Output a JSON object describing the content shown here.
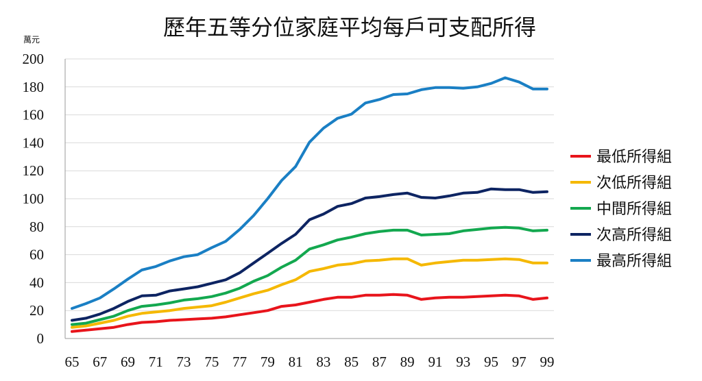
{
  "chart_data": {
    "type": "line",
    "title": "歷年五等分位家庭平均每戶可支配所得",
    "unit_label": "萬元",
    "xlabel": "",
    "ylabel": "",
    "ylim": [
      0,
      200
    ],
    "yticks": [
      0,
      20,
      40,
      60,
      80,
      100,
      120,
      140,
      160,
      180,
      200
    ],
    "grid": true,
    "legend_position": "right",
    "x": [
      65,
      66,
      67,
      68,
      69,
      70,
      71,
      72,
      73,
      74,
      75,
      76,
      77,
      78,
      79,
      80,
      81,
      82,
      83,
      84,
      85,
      86,
      87,
      88,
      89,
      90,
      91,
      92,
      93,
      94,
      95,
      96,
      97,
      98,
      99
    ],
    "xtick_labels": [
      "65",
      "67",
      "69",
      "71",
      "73",
      "75",
      "77",
      "79",
      "81",
      "83",
      "85",
      "87",
      "89",
      "91",
      "93",
      "95",
      "97",
      "99"
    ],
    "series": [
      {
        "name": "最低所得組",
        "color": "#e8141b",
        "values": [
          5,
          6,
          7,
          8,
          10,
          11.5,
          12,
          13,
          13.5,
          14,
          14.5,
          15.5,
          17,
          18.5,
          20,
          23,
          24,
          26,
          28,
          29.5,
          29.5,
          31,
          31,
          31.5,
          31,
          28,
          29,
          29.5,
          29.5,
          30,
          30.5,
          31,
          30.5,
          28,
          29
        ]
      },
      {
        "name": "次低所得組",
        "color": "#f5b800",
        "values": [
          8,
          9,
          11,
          13,
          16,
          18,
          19,
          20,
          21.5,
          22.5,
          23.5,
          26,
          29,
          32,
          34.5,
          38.5,
          42,
          48,
          50,
          52.5,
          53.5,
          55.5,
          56,
          57,
          57,
          52.5,
          54,
          55,
          56,
          56,
          56.5,
          57,
          56.5,
          54,
          54
        ]
      },
      {
        "name": "中間所得組",
        "color": "#13a84f",
        "values": [
          10,
          11,
          13.5,
          16,
          20,
          23,
          24,
          25.5,
          27.5,
          28.5,
          30,
          32.5,
          36,
          41,
          45,
          51,
          56,
          64,
          67,
          70.5,
          72.5,
          75,
          76.5,
          77.5,
          77.5,
          74,
          74.5,
          75,
          77,
          78,
          79,
          79.5,
          79,
          77,
          77.5
        ]
      },
      {
        "name": "次高所得組",
        "color": "#0d2462",
        "values": [
          13,
          14.5,
          17.5,
          21.5,
          26.5,
          30.5,
          31,
          34,
          35.5,
          37,
          39.5,
          42,
          47,
          54,
          61,
          68,
          74.5,
          85,
          89,
          94.5,
          96.5,
          100.5,
          101.5,
          103,
          104,
          101,
          100.5,
          102,
          104,
          104.5,
          107,
          106.5,
          106.5,
          104.5,
          105
        ]
      },
      {
        "name": "最高所得組",
        "color": "#1a7fc4",
        "values": [
          21.5,
          25,
          29,
          35.5,
          42.5,
          49,
          51.5,
          55.5,
          58.5,
          60,
          65,
          69.5,
          78,
          88,
          100,
          113,
          123,
          140.5,
          150.5,
          157.5,
          160.5,
          168.5,
          171,
          174.5,
          175,
          178,
          179.5,
          179.5,
          179,
          180,
          182.5,
          186.5,
          183.5,
          178.5,
          178.5
        ]
      }
    ]
  }
}
